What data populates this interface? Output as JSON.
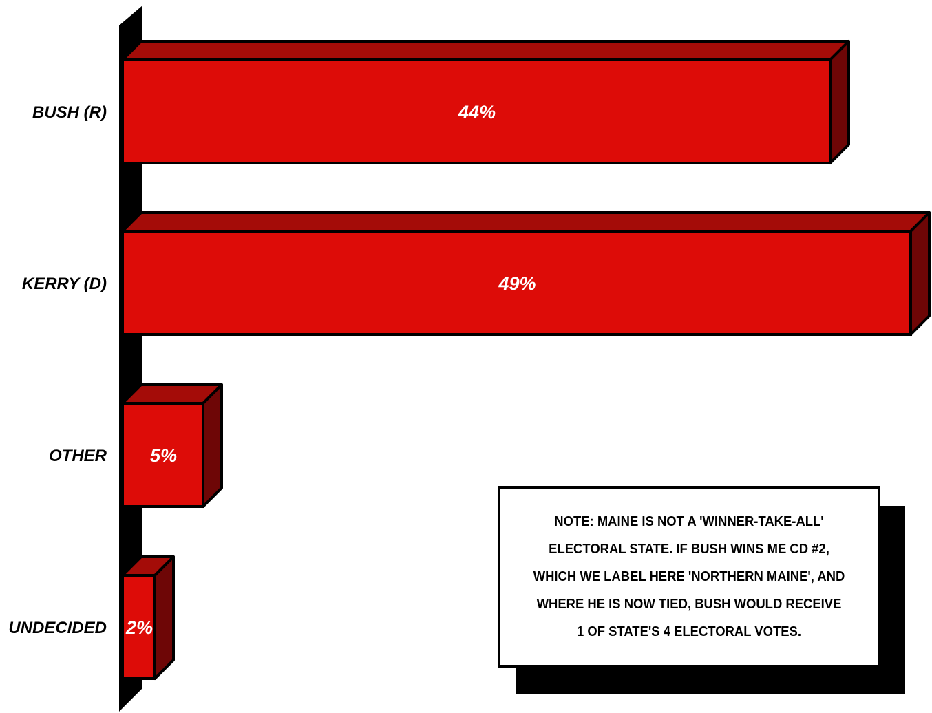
{
  "chart_data": {
    "type": "bar",
    "orientation": "horizontal",
    "categories": [
      "BUSH (R)",
      "KERRY (D)",
      "OTHER",
      "UNDECIDED"
    ],
    "values": [
      44,
      49,
      5,
      2
    ],
    "value_labels": [
      "44%",
      "49%",
      "5%",
      "2%"
    ],
    "title": "",
    "xlabel": "",
    "ylabel": "",
    "xlim": [
      0,
      49
    ],
    "grid": false,
    "style": "3d",
    "colors": {
      "bar_front": "#dd0c08",
      "bar_top": "#a40c08",
      "bar_side": "#6e0606",
      "axis_wall": "#000000",
      "outline": "#000000"
    }
  },
  "note": {
    "text": "NOTE: MAINE IS NOT A 'WINNER-TAKE-ALL' ELECTORAL STATE. IF BUSH WINS ME CD #2, WHICH WE LABEL HERE 'NORTHERN MAINE', AND WHERE HE IS NOW TIED, BUSH WOULD RECEIVE 1 OF STATE'S 4 ELECTORAL VOTES."
  }
}
